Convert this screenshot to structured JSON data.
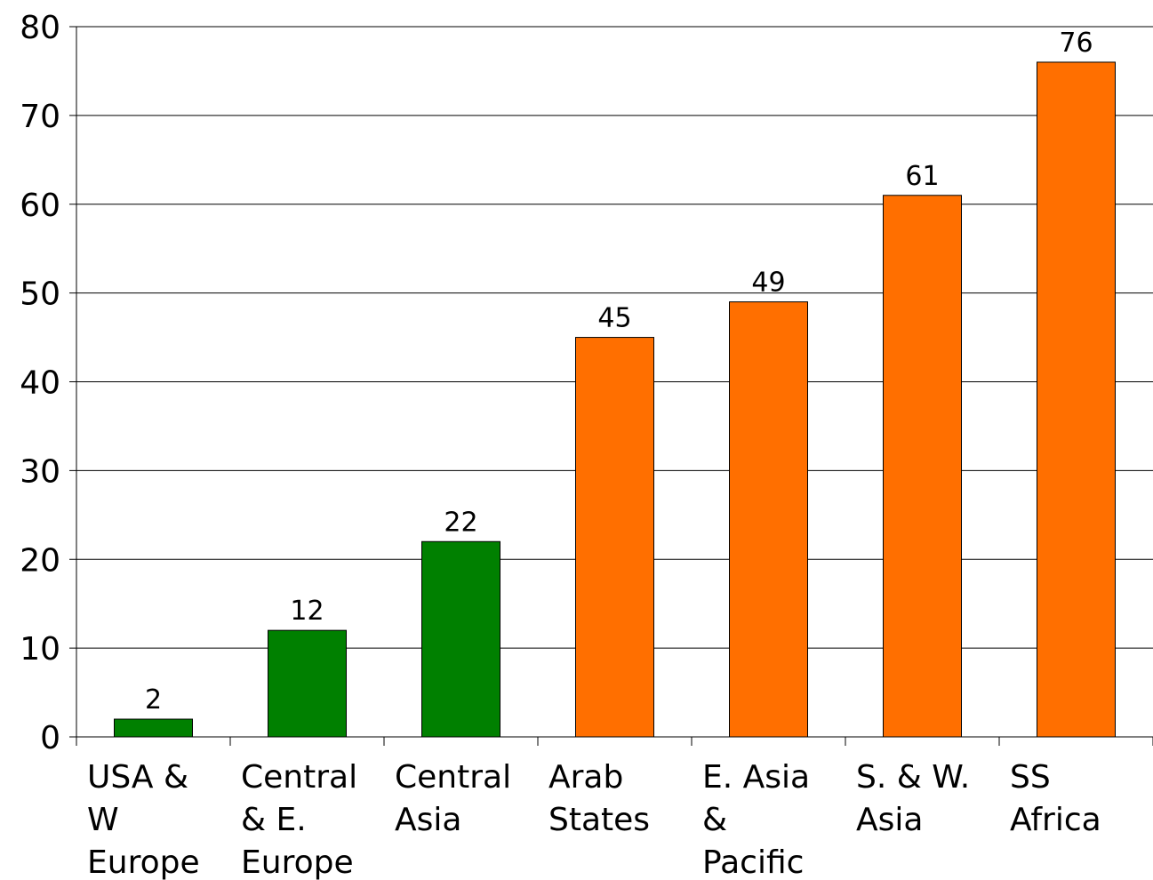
{
  "chart_data": {
    "type": "bar",
    "categories": [
      [
        "USA &",
        "W",
        "Europe"
      ],
      [
        "Central",
        "& E.",
        "Europe"
      ],
      [
        "Central",
        "Asia"
      ],
      [
        "Arab",
        "States"
      ],
      [
        "E. Asia",
        "&",
        "Pacific"
      ],
      [
        "S. & W.",
        "Asia"
      ],
      [
        "SS",
        "Africa"
      ]
    ],
    "values": [
      2,
      12,
      22,
      45,
      49,
      61,
      76
    ],
    "bar_colors": [
      "#008000",
      "#008000",
      "#008000",
      "#ff6f00",
      "#ff6f00",
      "#ff6f00",
      "#ff6f00"
    ],
    "data_labels": [
      "2",
      "12",
      "22",
      "45",
      "49",
      "61",
      "76"
    ],
    "y_ticks": [
      0,
      10,
      20,
      30,
      40,
      50,
      60,
      70,
      80
    ],
    "ylim": [
      0,
      80
    ],
    "title": "",
    "xlabel": "",
    "ylabel": "",
    "grid": true,
    "legend": "none"
  }
}
